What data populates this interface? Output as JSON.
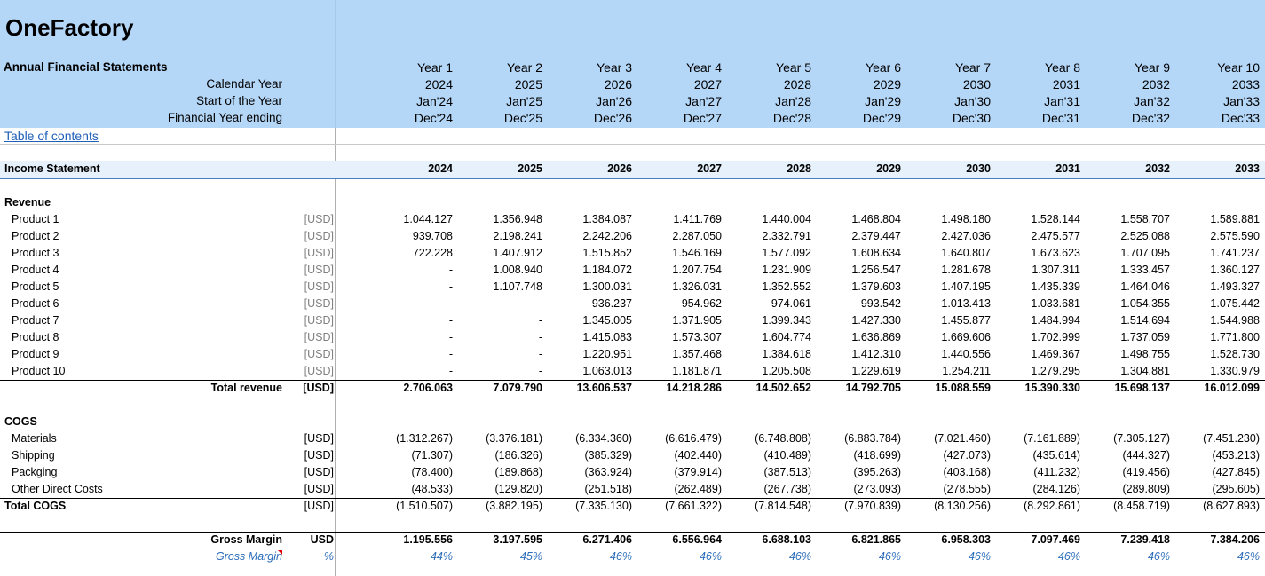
{
  "header": {
    "company": "OneFactory",
    "section_title": "Annual Financial Statements",
    "row_labels": [
      "Calendar Year",
      "Start of the Year",
      "Financial Year ending"
    ],
    "years": [
      {
        "label": "Year 1",
        "cal": "2024",
        "start": "Jan'24",
        "end": "Dec'24"
      },
      {
        "label": "Year 2",
        "cal": "2025",
        "start": "Jan'25",
        "end": "Dec'25"
      },
      {
        "label": "Year 3",
        "cal": "2026",
        "start": "Jan'26",
        "end": "Dec'26"
      },
      {
        "label": "Year 4",
        "cal": "2027",
        "start": "Jan'27",
        "end": "Dec'27"
      },
      {
        "label": "Year 5",
        "cal": "2028",
        "start": "Jan'28",
        "end": "Dec'28"
      },
      {
        "label": "Year 6",
        "cal": "2029",
        "start": "Jan'29",
        "end": "Dec'29"
      },
      {
        "label": "Year 7",
        "cal": "2030",
        "start": "Jan'30",
        "end": "Dec'30"
      },
      {
        "label": "Year 8",
        "cal": "2031",
        "start": "Jan'31",
        "end": "Dec'31"
      },
      {
        "label": "Year 9",
        "cal": "2032",
        "start": "Jan'32",
        "end": "Dec'32"
      },
      {
        "label": "Year 10",
        "cal": "2033",
        "start": "Jan'33",
        "end": "Dec'33"
      }
    ]
  },
  "toc_link": "Table of contents",
  "income_statement": {
    "title": "Income Statement",
    "years": [
      "2024",
      "2025",
      "2026",
      "2027",
      "2028",
      "2029",
      "2030",
      "2031",
      "2032",
      "2033"
    ],
    "revenue_heading": "Revenue",
    "revenue_rows": [
      {
        "label": "Product 1",
        "unit": "[USD]",
        "values": [
          "1.044.127",
          "1.356.948",
          "1.384.087",
          "1.411.769",
          "1.440.004",
          "1.468.804",
          "1.498.180",
          "1.528.144",
          "1.558.707",
          "1.589.881"
        ]
      },
      {
        "label": "Product 2",
        "unit": "[USD]",
        "values": [
          "939.708",
          "2.198.241",
          "2.242.206",
          "2.287.050",
          "2.332.791",
          "2.379.447",
          "2.427.036",
          "2.475.577",
          "2.525.088",
          "2.575.590"
        ]
      },
      {
        "label": "Product 3",
        "unit": "[USD]",
        "values": [
          "722.228",
          "1.407.912",
          "1.515.852",
          "1.546.169",
          "1.577.092",
          "1.608.634",
          "1.640.807",
          "1.673.623",
          "1.707.095",
          "1.741.237"
        ]
      },
      {
        "label": "Product 4",
        "unit": "[USD]",
        "values": [
          "-",
          "1.008.940",
          "1.184.072",
          "1.207.754",
          "1.231.909",
          "1.256.547",
          "1.281.678",
          "1.307.311",
          "1.333.457",
          "1.360.127"
        ]
      },
      {
        "label": "Product 5",
        "unit": "[USD]",
        "values": [
          "-",
          "1.107.748",
          "1.300.031",
          "1.326.031",
          "1.352.552",
          "1.379.603",
          "1.407.195",
          "1.435.339",
          "1.464.046",
          "1.493.327"
        ]
      },
      {
        "label": "Product 6",
        "unit": "[USD]",
        "values": [
          "-",
          "-",
          "936.237",
          "954.962",
          "974.061",
          "993.542",
          "1.013.413",
          "1.033.681",
          "1.054.355",
          "1.075.442"
        ]
      },
      {
        "label": "Product 7",
        "unit": "[USD]",
        "values": [
          "-",
          "-",
          "1.345.005",
          "1.371.905",
          "1.399.343",
          "1.427.330",
          "1.455.877",
          "1.484.994",
          "1.514.694",
          "1.544.988"
        ]
      },
      {
        "label": "Product 8",
        "unit": "[USD]",
        "values": [
          "-",
          "-",
          "1.415.083",
          "1.573.307",
          "1.604.774",
          "1.636.869",
          "1.669.606",
          "1.702.999",
          "1.737.059",
          "1.771.800"
        ]
      },
      {
        "label": "Product 9",
        "unit": "[USD]",
        "values": [
          "-",
          "-",
          "1.220.951",
          "1.357.468",
          "1.384.618",
          "1.412.310",
          "1.440.556",
          "1.469.367",
          "1.498.755",
          "1.528.730"
        ]
      },
      {
        "label": "Product 10",
        "unit": "[USD]",
        "values": [
          "-",
          "-",
          "1.063.013",
          "1.181.871",
          "1.205.508",
          "1.229.619",
          "1.254.211",
          "1.279.295",
          "1.304.881",
          "1.330.979"
        ]
      }
    ],
    "total_revenue": {
      "label": "Total revenue",
      "unit": "[USD]",
      "values": [
        "2.706.063",
        "7.079.790",
        "13.606.537",
        "14.218.286",
        "14.502.652",
        "14.792.705",
        "15.088.559",
        "15.390.330",
        "15.698.137",
        "16.012.099"
      ]
    },
    "cogs_heading": "COGS",
    "cogs_rows": [
      {
        "label": "Materials",
        "unit": "[USD]",
        "values": [
          "(1.312.267)",
          "(3.376.181)",
          "(6.334.360)",
          "(6.616.479)",
          "(6.748.808)",
          "(6.883.784)",
          "(7.021.460)",
          "(7.161.889)",
          "(7.305.127)",
          "(7.451.230)"
        ]
      },
      {
        "label": "Shipping",
        "unit": "[USD]",
        "values": [
          "(71.307)",
          "(186.326)",
          "(385.329)",
          "(402.440)",
          "(410.489)",
          "(418.699)",
          "(427.073)",
          "(435.614)",
          "(444.327)",
          "(453.213)"
        ]
      },
      {
        "label": "Packging",
        "unit": "[USD]",
        "values": [
          "(78.400)",
          "(189.868)",
          "(363.924)",
          "(379.914)",
          "(387.513)",
          "(395.263)",
          "(403.168)",
          "(411.232)",
          "(419.456)",
          "(427.845)"
        ]
      },
      {
        "label": "Other Direct Costs",
        "unit": "[USD]",
        "values": [
          "(48.533)",
          "(129.820)",
          "(251.518)",
          "(262.489)",
          "(267.738)",
          "(273.093)",
          "(278.555)",
          "(284.126)",
          "(289.809)",
          "(295.605)"
        ]
      }
    ],
    "total_cogs": {
      "label": "Total COGS",
      "unit": "[USD]",
      "values": [
        "(1.510.507)",
        "(3.882.195)",
        "(7.335.130)",
        "(7.661.322)",
        "(7.814.548)",
        "(7.970.839)",
        "(8.130.256)",
        "(8.292.861)",
        "(8.458.719)",
        "(8.627.893)"
      ]
    },
    "gross_margin": {
      "label": "Gross Margin",
      "unit": "USD",
      "values": [
        "1.195.556",
        "3.197.595",
        "6.271.406",
        "6.556.964",
        "6.688.103",
        "6.821.865",
        "6.958.303",
        "7.097.469",
        "7.239.418",
        "7.384.206"
      ]
    },
    "gross_margin_pct": {
      "label": "Gross Margin",
      "unit": "%",
      "values": [
        "44%",
        "45%",
        "46%",
        "46%",
        "46%",
        "46%",
        "46%",
        "46%",
        "46%",
        "46%"
      ]
    }
  }
}
